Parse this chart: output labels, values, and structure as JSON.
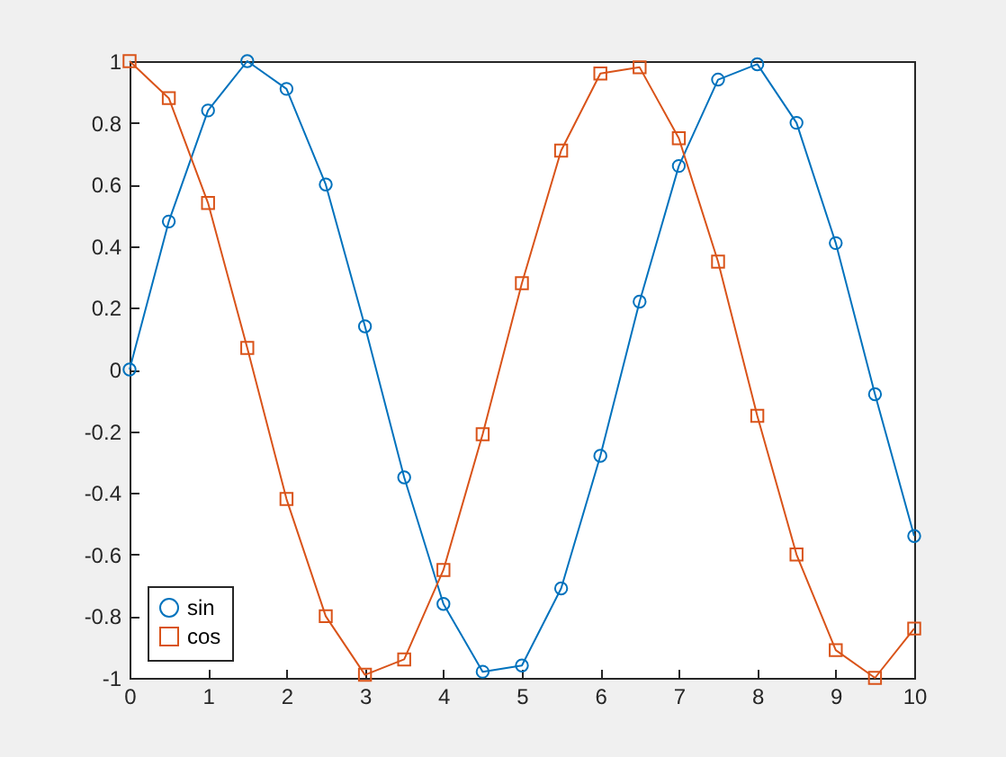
{
  "chart_data": {
    "type": "line",
    "x": [
      0,
      0.5,
      1,
      1.5,
      2,
      2.5,
      3,
      3.5,
      4,
      4.5,
      5,
      5.5,
      6,
      6.5,
      7,
      7.5,
      8,
      8.5,
      9,
      9.5,
      10
    ],
    "series": [
      {
        "name": "sin",
        "color": "#0072bd",
        "marker": "circle",
        "values": [
          0,
          0.48,
          0.84,
          1.0,
          0.91,
          0.6,
          0.14,
          -0.35,
          -0.76,
          -0.98,
          -0.96,
          -0.71,
          -0.28,
          0.22,
          0.66,
          0.94,
          0.99,
          0.8,
          0.41,
          -0.08,
          -0.54
        ]
      },
      {
        "name": "cos",
        "color": "#d95319",
        "marker": "square",
        "values": [
          1,
          0.88,
          0.54,
          0.07,
          -0.42,
          -0.8,
          -0.99,
          -0.94,
          -0.65,
          -0.21,
          0.28,
          0.71,
          0.96,
          0.98,
          0.75,
          0.35,
          -0.15,
          -0.6,
          -0.91,
          -1.0,
          -0.84
        ]
      }
    ],
    "xlim": [
      0,
      10
    ],
    "xticks": [
      0,
      1,
      2,
      3,
      4,
      5,
      6,
      7,
      8,
      9,
      10
    ],
    "ylim": [
      -1,
      1
    ],
    "yticks": [
      -1,
      -0.8,
      -0.6,
      -0.4,
      -0.2,
      0,
      0.2,
      0.4,
      0.6,
      0.8,
      1
    ],
    "legend": "bottom left",
    "grid": false
  }
}
